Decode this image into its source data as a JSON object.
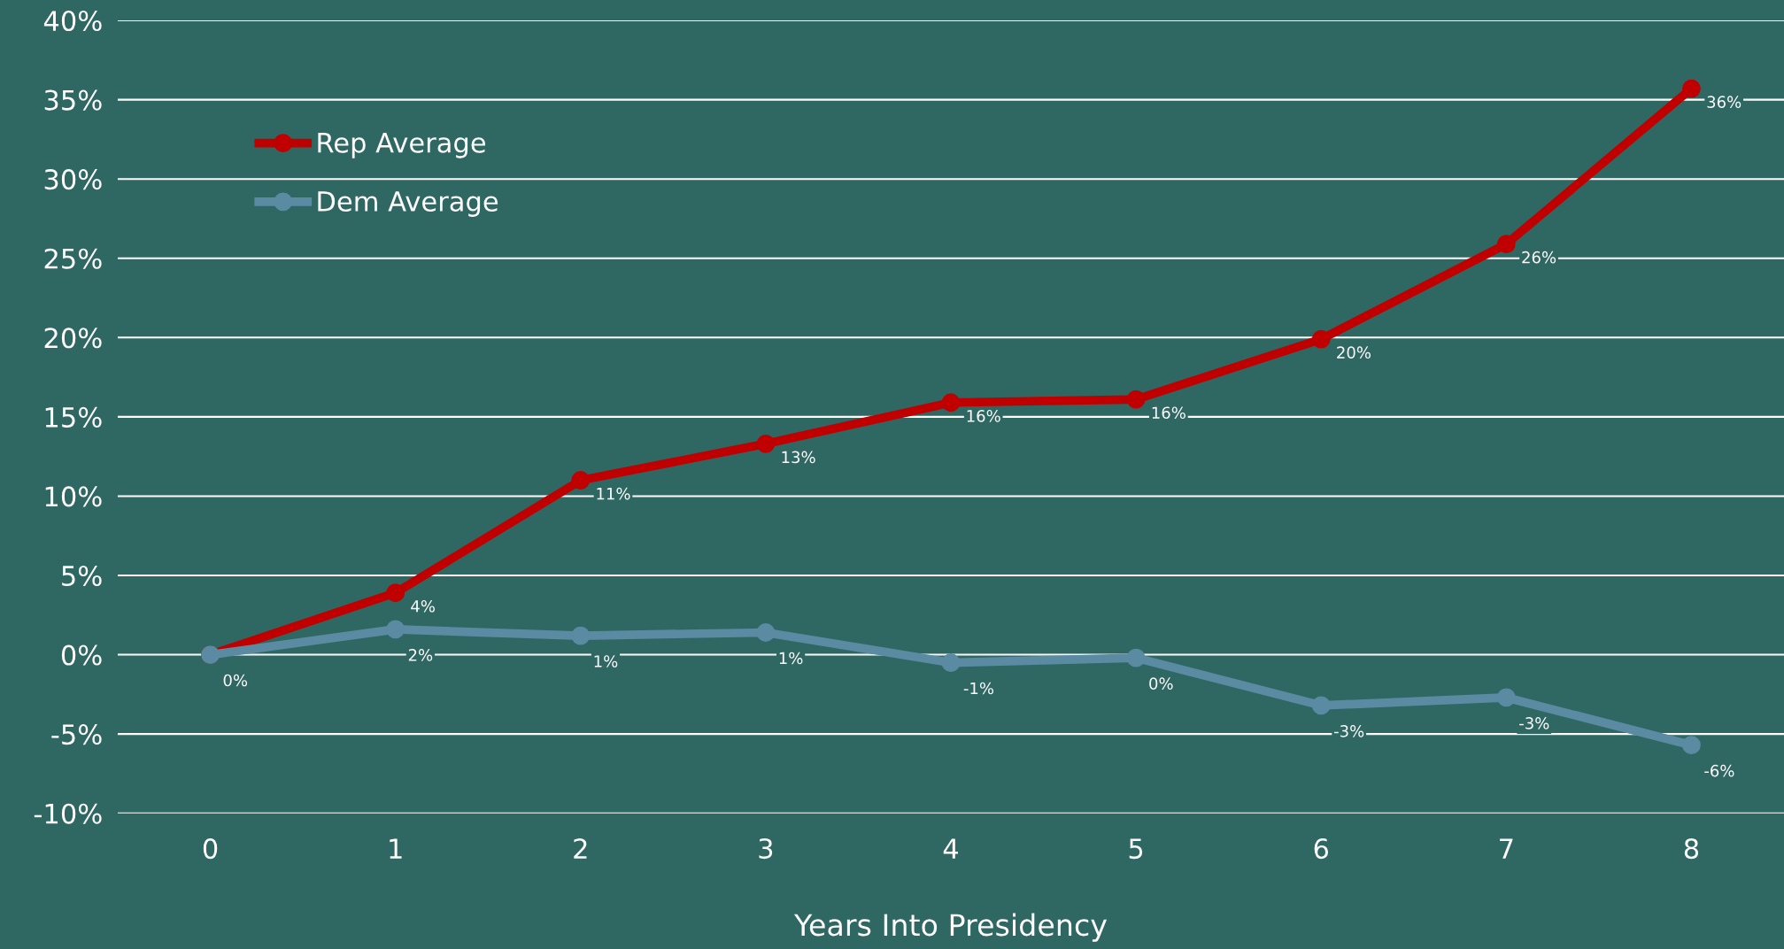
{
  "chart_data": {
    "type": "line",
    "xlabel": "Years Into Presidency",
    "categories": [
      "0",
      "1",
      "2",
      "3",
      "4",
      "5",
      "6",
      "7",
      "8"
    ],
    "series": [
      {
        "name": "Rep Average",
        "color": "#c00000",
        "values": [
          0,
          3.9,
          11.0,
          13.3,
          15.9,
          16.1,
          19.9,
          25.9,
          35.7
        ],
        "value_labels": [
          null,
          "4%",
          "11%",
          "13%",
          "16%",
          "16%",
          "20%",
          "26%",
          "36%"
        ]
      },
      {
        "name": "Dem Average",
        "color": "#5b8ba3",
        "values": [
          0,
          1.6,
          1.2,
          1.4,
          -0.5,
          -0.2,
          -3.2,
          -2.7,
          -5.7
        ],
        "value_labels": [
          "0%",
          "2%",
          "1%",
          "1%",
          "-1%",
          "0%",
          "-3%",
          "-3%",
          "-6%"
        ]
      }
    ],
    "ylim": [
      -10,
      40
    ],
    "yticks": [
      {
        "value": -10,
        "label": "-10%"
      },
      {
        "value": -5,
        "label": "-5%"
      },
      {
        "value": 0,
        "label": "0%"
      },
      {
        "value": 5,
        "label": "5%"
      },
      {
        "value": 10,
        "label": "10%"
      },
      {
        "value": 15,
        "label": "15%"
      },
      {
        "value": 20,
        "label": "20%"
      },
      {
        "value": 25,
        "label": "25%"
      },
      {
        "value": 30,
        "label": "30%"
      },
      {
        "value": 35,
        "label": "35%"
      },
      {
        "value": 40,
        "label": "40%"
      }
    ],
    "grid": "y",
    "legend": "top left",
    "marker": "circle",
    "line_style": "solid"
  }
}
